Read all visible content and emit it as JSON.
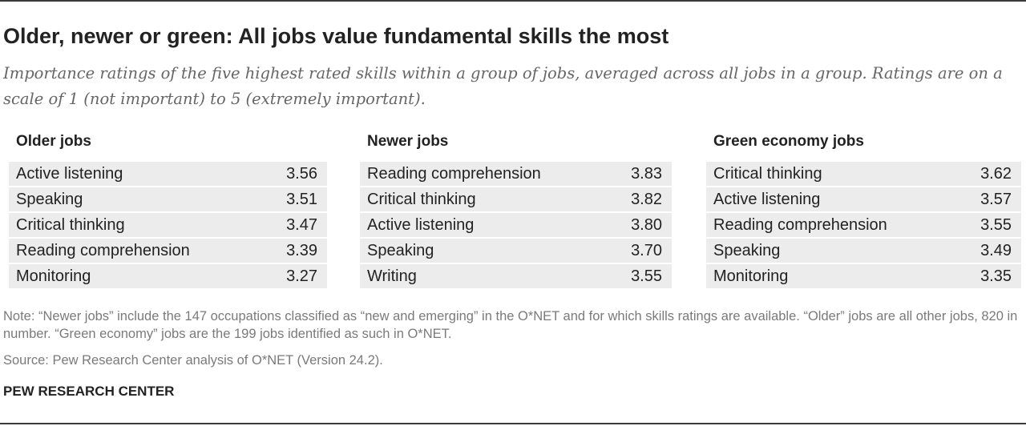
{
  "title": "Older, newer or green: All jobs value fundamental skills the most",
  "subtitle": "Importance ratings of the five highest rated skills within a group of jobs, averaged across all jobs in a group. Ratings are on a scale of 1 (not important) to 5 (extremely important).",
  "chart_data": {
    "type": "table",
    "tables": [
      {
        "header": "Older jobs",
        "rows": [
          {
            "skill": "Active listening",
            "value": "3.56"
          },
          {
            "skill": "Speaking",
            "value": "3.51"
          },
          {
            "skill": "Critical thinking",
            "value": "3.47"
          },
          {
            "skill": "Reading comprehension",
            "value": "3.39"
          },
          {
            "skill": "Monitoring",
            "value": "3.27"
          }
        ]
      },
      {
        "header": "Newer jobs",
        "rows": [
          {
            "skill": "Reading comprehension",
            "value": "3.83"
          },
          {
            "skill": "Critical thinking",
            "value": "3.82"
          },
          {
            "skill": "Active listening",
            "value": "3.80"
          },
          {
            "skill": "Speaking",
            "value": "3.70"
          },
          {
            "skill": "Writing",
            "value": "3.55"
          }
        ]
      },
      {
        "header": "Green economy jobs",
        "rows": [
          {
            "skill": "Critical thinking",
            "value": "3.62"
          },
          {
            "skill": "Active listening",
            "value": "3.57"
          },
          {
            "skill": "Reading comprehension",
            "value": "3.55"
          },
          {
            "skill": "Speaking",
            "value": "3.49"
          },
          {
            "skill": "Monitoring",
            "value": "3.35"
          }
        ]
      }
    ]
  },
  "note": "Note: “Newer jobs” include the 147 occupations classified as “new and emerging” in the O*NET and for which skills ratings are available. “Older” jobs are all other jobs, 820 in number. “Green economy” jobs are the 199 jobs identified as such in O*NET.",
  "source": "Source: Pew Research Center analysis of O*NET (Version 24.2).",
  "brand": "PEW RESEARCH CENTER",
  "colors": {
    "row_background": "#ececec",
    "rule": "#3a3a3a",
    "muted_text": "#7a7a7a",
    "subtitle_text": "#666666"
  }
}
